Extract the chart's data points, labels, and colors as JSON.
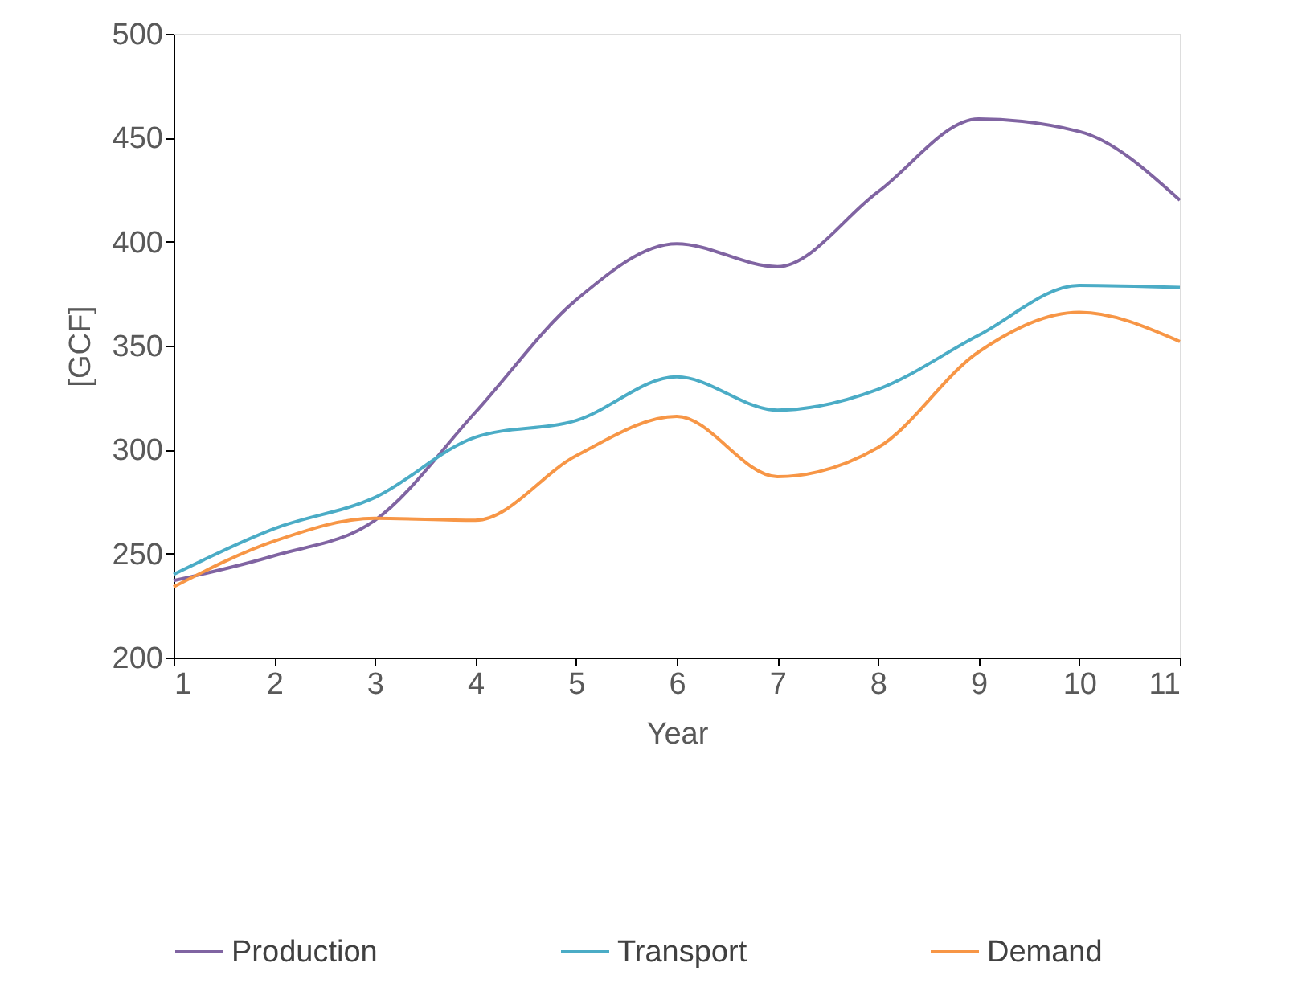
{
  "chart_data": {
    "type": "line",
    "xlabel": "Year",
    "ylabel": "[GCF]",
    "x": [
      1,
      2,
      3,
      4,
      5,
      6,
      7,
      8,
      9,
      10,
      11
    ],
    "series": [
      {
        "name": "Production",
        "color": "#8064a2",
        "values": [
          237,
          249,
          266,
          318,
          372,
          399,
          388,
          424,
          459,
          453,
          420
        ]
      },
      {
        "name": "Transport",
        "color": "#4bacc6",
        "values": [
          240,
          262,
          277,
          306,
          314,
          335,
          319,
          329,
          355,
          379,
          378
        ]
      },
      {
        "name": "Demand",
        "color": "#f79646",
        "values": [
          234,
          256,
          267,
          266,
          297,
          316,
          287,
          301,
          347,
          366,
          352
        ]
      }
    ],
    "xlim": [
      1,
      11
    ],
    "xticks": [
      1,
      2,
      3,
      4,
      5,
      6,
      7,
      8,
      9,
      10,
      11
    ],
    "ylim": [
      200,
      500
    ],
    "yticks": [
      200,
      250,
      300,
      350,
      400,
      450,
      500
    ],
    "grid": false,
    "legend": "bottom",
    "marker": "none",
    "line_style": "solid"
  }
}
